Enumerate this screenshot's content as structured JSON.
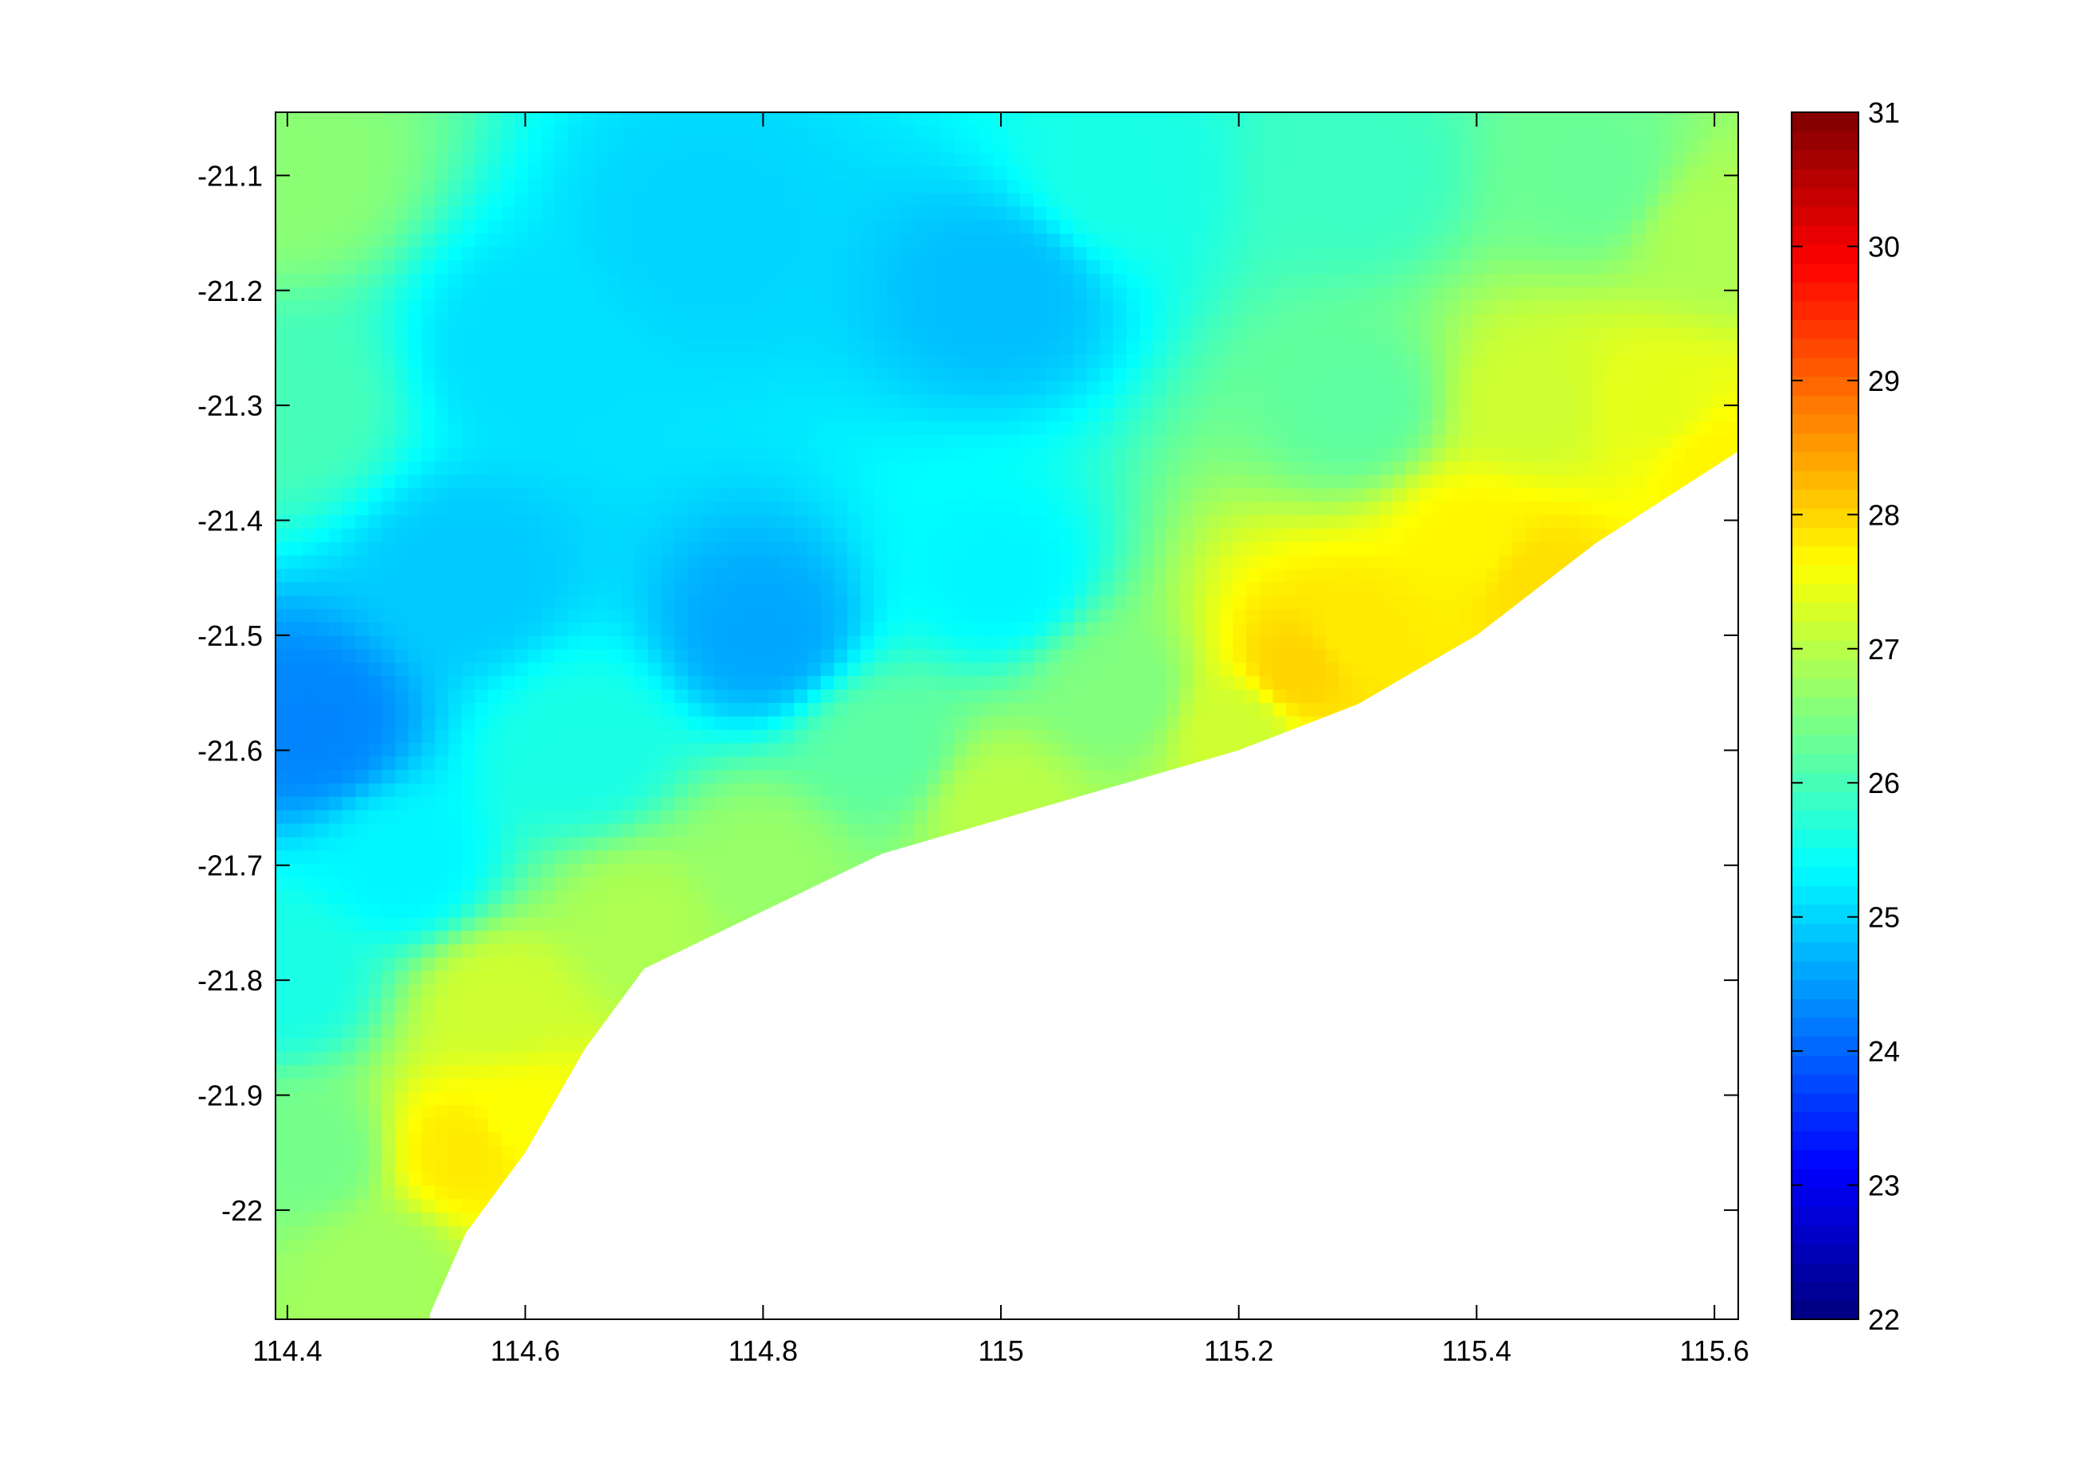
{
  "chart_data": {
    "type": "heatmap",
    "title": "",
    "xlabel": "",
    "ylabel": "",
    "xlim": [
      114.39,
      115.62
    ],
    "ylim": [
      -22.095,
      -21.045
    ],
    "x_ticks": [
      114.4,
      114.6,
      114.8,
      115,
      115.2,
      115.4,
      115.6
    ],
    "x_tick_labels": [
      "114.4",
      "114.6",
      "114.8",
      "115",
      "115.2",
      "115.4",
      "115.6"
    ],
    "y_ticks": [
      -21.1,
      -21.2,
      -21.3,
      -21.4,
      -21.5,
      -21.6,
      -21.7,
      -21.8,
      -21.9,
      -22.0
    ],
    "y_tick_labels": [
      "-21.1",
      "-21.2",
      "-21.3",
      "-21.4",
      "-21.5",
      "-21.6",
      "-21.7",
      "-21.8",
      "-21.9",
      "-22"
    ],
    "colorbar": {
      "colormap": "jet",
      "range": [
        22,
        31
      ],
      "ticks": [
        22,
        23,
        24,
        25,
        26,
        27,
        28,
        29,
        30,
        31
      ],
      "tick_labels": [
        "22",
        "23",
        "24",
        "25",
        "26",
        "27",
        "28",
        "29",
        "30",
        "31"
      ]
    },
    "grid": false,
    "coastline": {
      "description_points_lon": [
        114.52,
        114.55,
        114.6,
        114.65,
        114.7,
        114.8,
        114.9,
        115.0,
        115.1,
        115.2,
        115.3,
        115.4,
        115.5,
        115.62
      ],
      "description_points_lat": [
        -22.09,
        -22.02,
        -21.95,
        -21.86,
        -21.79,
        -21.74,
        -21.69,
        -21.66,
        -21.63,
        -21.6,
        -21.56,
        -21.5,
        -21.42,
        -21.34
      ]
    },
    "field_keypoints": [
      {
        "lon": 114.4,
        "lat": -21.1,
        "value": 26.6
      },
      {
        "lon": 114.4,
        "lat": -21.3,
        "value": 26.0
      },
      {
        "lon": 114.42,
        "lat": -21.58,
        "value": 24.3
      },
      {
        "lon": 114.4,
        "lat": -21.8,
        "value": 25.6
      },
      {
        "lon": 114.42,
        "lat": -21.95,
        "value": 26.4
      },
      {
        "lon": 114.48,
        "lat": -22.05,
        "value": 26.8
      },
      {
        "lon": 114.55,
        "lat": -21.95,
        "value": 27.8
      },
      {
        "lon": 114.6,
        "lat": -21.92,
        "value": 27.6
      },
      {
        "lon": 114.58,
        "lat": -21.82,
        "value": 27.2
      },
      {
        "lon": 114.5,
        "lat": -21.7,
        "value": 25.3
      },
      {
        "lon": 114.55,
        "lat": -21.45,
        "value": 24.9
      },
      {
        "lon": 114.6,
        "lat": -21.25,
        "value": 25.1
      },
      {
        "lon": 114.65,
        "lat": -21.6,
        "value": 25.6
      },
      {
        "lon": 114.7,
        "lat": -21.75,
        "value": 26.9
      },
      {
        "lon": 114.8,
        "lat": -21.7,
        "value": 26.7
      },
      {
        "lon": 114.8,
        "lat": -21.5,
        "value": 24.6
      },
      {
        "lon": 114.75,
        "lat": -21.15,
        "value": 25.0
      },
      {
        "lon": 114.9,
        "lat": -21.6,
        "value": 26.2
      },
      {
        "lon": 115.0,
        "lat": -21.65,
        "value": 27.0
      },
      {
        "lon": 115.0,
        "lat": -21.45,
        "value": 25.3
      },
      {
        "lon": 115.0,
        "lat": -21.2,
        "value": 24.8
      },
      {
        "lon": 115.1,
        "lat": -21.1,
        "value": 25.6
      },
      {
        "lon": 115.1,
        "lat": -21.55,
        "value": 26.5
      },
      {
        "lon": 115.2,
        "lat": -21.58,
        "value": 27.2
      },
      {
        "lon": 115.25,
        "lat": -21.53,
        "value": 28.0
      },
      {
        "lon": 115.3,
        "lat": -21.5,
        "value": 27.8
      },
      {
        "lon": 115.3,
        "lat": -21.3,
        "value": 26.2
      },
      {
        "lon": 115.4,
        "lat": -21.42,
        "value": 27.7
      },
      {
        "lon": 115.45,
        "lat": -21.45,
        "value": 27.9
      },
      {
        "lon": 115.45,
        "lat": -21.3,
        "value": 27.2
      },
      {
        "lon": 115.55,
        "lat": -21.3,
        "value": 27.4
      },
      {
        "lon": 115.6,
        "lat": -21.35,
        "value": 27.7
      },
      {
        "lon": 115.6,
        "lat": -21.15,
        "value": 26.9
      },
      {
        "lon": 115.5,
        "lat": -21.1,
        "value": 26.3
      },
      {
        "lon": 115.3,
        "lat": -21.1,
        "value": 25.9
      }
    ]
  }
}
